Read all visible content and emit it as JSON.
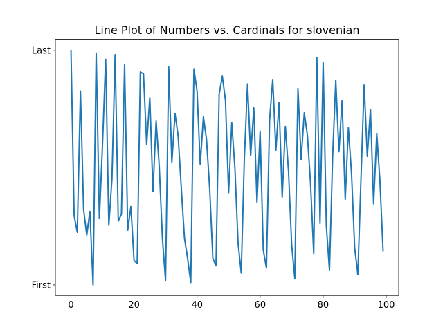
{
  "chart_data": {
    "type": "line",
    "title": "Line Plot of Numbers vs. Cardinals for slovenian",
    "xlabel": "",
    "ylabel": "",
    "x_ticks": [
      0,
      20,
      40,
      60,
      80,
      100
    ],
    "y_ticks": [
      {
        "value": 0,
        "label": "First"
      },
      {
        "value": 1,
        "label": "Last"
      }
    ],
    "xlim": [
      -4.95,
      103.95
    ],
    "ylim": [
      -0.045,
      1.045
    ],
    "grid": false,
    "line_color": "#1f77b4",
    "series": [
      {
        "x": [
          0,
          1,
          2,
          3,
          4,
          5,
          6,
          7,
          8,
          9,
          10,
          11,
          12,
          13,
          14,
          15,
          16,
          17,
          18,
          19,
          20,
          21,
          22,
          23,
          24,
          25,
          26,
          27,
          28,
          29,
          30,
          31,
          32,
          33,
          34,
          35,
          36,
          37,
          38,
          39,
          40,
          41,
          42,
          43,
          44,
          45,
          46,
          47,
          48,
          49,
          50,
          51,
          52,
          53,
          54,
          55,
          56,
          57,
          58,
          59,
          60,
          61,
          62,
          63,
          64,
          65,
          66,
          67,
          68,
          69,
          70,
          71,
          72,
          73,
          74,
          75,
          76,
          77,
          78,
          79,
          80,
          81,
          82,
          83,
          84,
          85,
          86,
          87,
          88,
          89,
          90,
          91,
          92,
          93,
          94,
          95,
          96,
          97,
          98,
          99
        ],
        "y": [
          1.0,
          0.295,
          0.224,
          0.827,
          0.322,
          0.212,
          0.313,
          0.0,
          0.989,
          0.283,
          0.599,
          0.962,
          0.254,
          0.453,
          0.982,
          0.272,
          0.301,
          0.939,
          0.233,
          0.334,
          0.104,
          0.092,
          0.908,
          0.9,
          0.599,
          0.799,
          0.398,
          0.699,
          0.505,
          0.199,
          0.02,
          0.929,
          0.523,
          0.731,
          0.633,
          0.411,
          0.199,
          0.112,
          0.01,
          0.919,
          0.827,
          0.513,
          0.717,
          0.619,
          0.409,
          0.113,
          0.082,
          0.813,
          0.89,
          0.788,
          0.393,
          0.691,
          0.498,
          0.179,
          0.051,
          0.541,
          0.857,
          0.551,
          0.755,
          0.352,
          0.653,
          0.149,
          0.072,
          0.703,
          0.876,
          0.574,
          0.778,
          0.374,
          0.676,
          0.487,
          0.173,
          0.028,
          0.838,
          0.534,
          0.734,
          0.638,
          0.432,
          0.134,
          0.968,
          0.262,
          0.949,
          0.252,
          0.062,
          0.547,
          0.872,
          0.568,
          0.787,
          0.365,
          0.67,
          0.473,
          0.158,
          0.044,
          0.454,
          0.852,
          0.548,
          0.749,
          0.346,
          0.646,
          0.445,
          0.146
        ]
      }
    ]
  }
}
